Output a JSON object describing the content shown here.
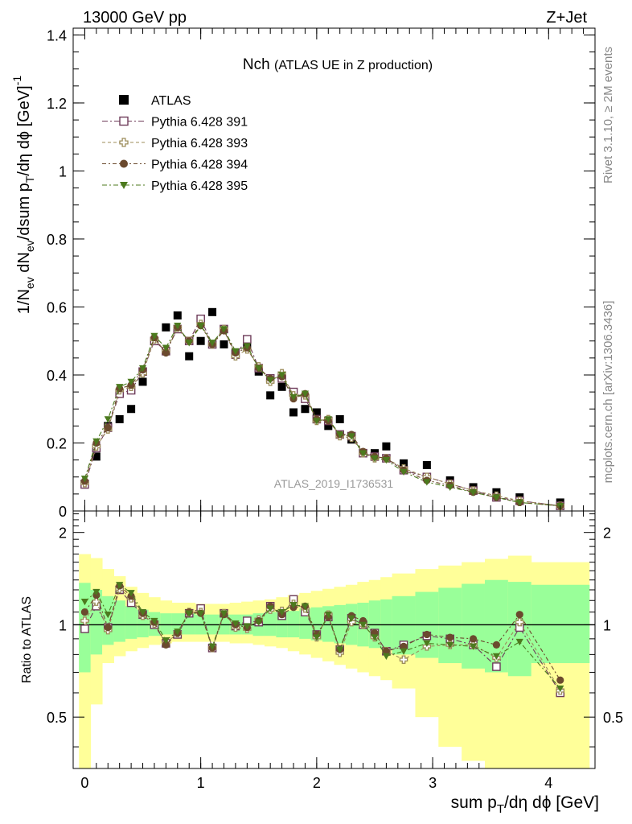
{
  "header": {
    "left": "13000 GeV pp",
    "right": "Z+Jet"
  },
  "side_text": {
    "rivet": "Rivet 3.1.10, ≥ 2M events",
    "mcplots": "mcplots.cern.ch [arXiv:1306.3436]"
  },
  "watermark": "ATLAS_2019_I1736531",
  "chart_data": [
    {
      "type": "scatter",
      "title": "Nch",
      "subtitle": "(ATLAS UE in Z production)",
      "ylabel": "1/N_ev dN_ev/dsum p_T/dη dϕ [GeV]^-1",
      "xlabel": "sum p_T/dη dϕ [GeV]",
      "xlim": [
        -0.1,
        4.4
      ],
      "ylim": [
        0,
        1.42
      ],
      "x_ticks": [
        "0",
        "1",
        "2",
        "3",
        "4"
      ],
      "y_ticks": [
        "0",
        "0.2",
        "0.4",
        "0.6",
        "0.8",
        "1",
        "1.2",
        "1.4"
      ],
      "legend_placement": "top-left",
      "x": [
        0.0,
        0.1,
        0.2,
        0.3,
        0.4,
        0.5,
        0.6,
        0.7,
        0.8,
        0.9,
        1.0,
        1.1,
        1.2,
        1.3,
        1.4,
        1.5,
        1.6,
        1.7,
        1.8,
        1.9,
        2.0,
        2.1,
        2.2,
        2.3,
        2.4,
        2.5,
        2.6,
        2.75,
        2.95,
        3.15,
        3.35,
        3.55,
        3.75,
        4.1
      ],
      "series": [
        {
          "name": "ATLAS",
          "marker": "filled-square",
          "color": "#000000",
          "values": [
            0.08,
            0.16,
            0.25,
            0.27,
            0.3,
            0.38,
            0.5,
            0.54,
            0.575,
            0.455,
            0.5,
            0.585,
            0.49,
            0.465,
            0.49,
            0.41,
            0.34,
            0.365,
            0.29,
            0.3,
            0.29,
            0.25,
            0.27,
            0.21,
            0.17,
            0.17,
            0.19,
            0.14,
            0.135,
            0.09,
            0.07,
            0.055,
            0.04,
            0.025
          ]
        },
        {
          "name": "Pythia 6.428 391",
          "marker": "open-square",
          "color": "#6e3c5a",
          "values": [
            0.078,
            0.185,
            0.245,
            0.345,
            0.355,
            0.41,
            0.5,
            0.47,
            0.535,
            0.5,
            0.565,
            0.49,
            0.535,
            0.46,
            0.505,
            0.42,
            0.39,
            0.39,
            0.35,
            0.33,
            0.27,
            0.265,
            0.225,
            0.22,
            0.17,
            0.16,
            0.155,
            0.12,
            0.1,
            0.08,
            0.06,
            0.04,
            0.03,
            0.015
          ]
        },
        {
          "name": "Pythia 6.428 393",
          "marker": "open-cross",
          "color": "#9c8c5a",
          "values": [
            0.082,
            0.19,
            0.24,
            0.355,
            0.365,
            0.405,
            0.505,
            0.47,
            0.54,
            0.5,
            0.55,
            0.49,
            0.535,
            0.455,
            0.475,
            0.425,
            0.38,
            0.405,
            0.34,
            0.34,
            0.265,
            0.27,
            0.22,
            0.215,
            0.17,
            0.155,
            0.155,
            0.125,
            0.1,
            0.08,
            0.06,
            0.045,
            0.03,
            0.015
          ]
        },
        {
          "name": "Pythia 6.428 394",
          "marker": "filled-circle",
          "color": "#6b4a2e",
          "values": [
            0.088,
            0.2,
            0.245,
            0.36,
            0.37,
            0.415,
            0.51,
            0.465,
            0.54,
            0.5,
            0.545,
            0.49,
            0.53,
            0.465,
            0.48,
            0.42,
            0.39,
            0.395,
            0.33,
            0.345,
            0.27,
            0.265,
            0.225,
            0.225,
            0.175,
            0.16,
            0.155,
            0.12,
            0.09,
            0.075,
            0.055,
            0.04,
            0.025,
            0.015
          ]
        },
        {
          "name": "Pythia 6.428 395",
          "marker": "filled-triangle-down",
          "color": "#4c7a1e",
          "values": [
            0.095,
            0.205,
            0.27,
            0.365,
            0.38,
            0.42,
            0.515,
            0.48,
            0.545,
            0.495,
            0.545,
            0.495,
            0.535,
            0.47,
            0.485,
            0.42,
            0.385,
            0.4,
            0.335,
            0.345,
            0.265,
            0.27,
            0.225,
            0.22,
            0.17,
            0.155,
            0.15,
            0.115,
            0.085,
            0.07,
            0.055,
            0.04,
            0.025,
            0.015
          ]
        }
      ]
    },
    {
      "type": "scatter",
      "ylabel": "Ratio to ATLAS",
      "xlabel": "sum p_T/dη dϕ [GeV]",
      "xlim": [
        -0.1,
        4.4
      ],
      "ylim": [
        0.34,
        2.35
      ],
      "y_ticks": [
        "0.5",
        "1",
        "2"
      ],
      "reference_line": 1,
      "bands": {
        "edges": [
          -0.05,
          0.05,
          0.15,
          0.25,
          0.35,
          0.45,
          0.55,
          0.65,
          0.75,
          0.85,
          0.95,
          1.05,
          1.15,
          1.25,
          1.35,
          1.45,
          1.55,
          1.65,
          1.75,
          1.85,
          1.95,
          2.05,
          2.15,
          2.25,
          2.35,
          2.45,
          2.55,
          2.65,
          2.85,
          3.05,
          3.25,
          3.45,
          3.65,
          3.85,
          4.35
        ],
        "green_color": "#99ff99",
        "yellow_color": "#ffff99",
        "green": [
          [
            0.7,
            1.37
          ],
          [
            0.8,
            1.3
          ],
          [
            0.86,
            1.24
          ],
          [
            0.88,
            1.2
          ],
          [
            0.9,
            1.15
          ],
          [
            0.91,
            1.12
          ],
          [
            0.92,
            1.1
          ],
          [
            0.93,
            1.09
          ],
          [
            0.93,
            1.09
          ],
          [
            0.93,
            1.09
          ],
          [
            0.93,
            1.08
          ],
          [
            0.93,
            1.08
          ],
          [
            0.93,
            1.08
          ],
          [
            0.93,
            1.08
          ],
          [
            0.93,
            1.08
          ],
          [
            0.92,
            1.09
          ],
          [
            0.92,
            1.1
          ],
          [
            0.91,
            1.11
          ],
          [
            0.91,
            1.11
          ],
          [
            0.9,
            1.13
          ],
          [
            0.89,
            1.14
          ],
          [
            0.88,
            1.15
          ],
          [
            0.87,
            1.16
          ],
          [
            0.86,
            1.17
          ],
          [
            0.85,
            1.18
          ],
          [
            0.84,
            1.2
          ],
          [
            0.83,
            1.21
          ],
          [
            0.8,
            1.24
          ],
          [
            0.78,
            1.28
          ],
          [
            0.75,
            1.32
          ],
          [
            0.72,
            1.36
          ],
          [
            0.7,
            1.4
          ],
          [
            0.68,
            1.38
          ],
          [
            0.75,
            1.35
          ]
        ],
        "yellow": [
          [
            0.3,
            1.7
          ],
          [
            0.55,
            1.65
          ],
          [
            0.75,
            1.52
          ],
          [
            0.79,
            1.44
          ],
          [
            0.82,
            1.33
          ],
          [
            0.84,
            1.27
          ],
          [
            0.86,
            1.23
          ],
          [
            0.87,
            1.2
          ],
          [
            0.88,
            1.18
          ],
          [
            0.88,
            1.18
          ],
          [
            0.88,
            1.17
          ],
          [
            0.88,
            1.17
          ],
          [
            0.88,
            1.17
          ],
          [
            0.87,
            1.18
          ],
          [
            0.87,
            1.19
          ],
          [
            0.86,
            1.2
          ],
          [
            0.85,
            1.21
          ],
          [
            0.84,
            1.23
          ],
          [
            0.82,
            1.25
          ],
          [
            0.8,
            1.27
          ],
          [
            0.78,
            1.29
          ],
          [
            0.76,
            1.31
          ],
          [
            0.74,
            1.33
          ],
          [
            0.72,
            1.35
          ],
          [
            0.7,
            1.38
          ],
          [
            0.68,
            1.4
          ],
          [
            0.66,
            1.43
          ],
          [
            0.62,
            1.47
          ],
          [
            0.5,
            1.52
          ],
          [
            0.4,
            1.56
          ],
          [
            0.36,
            1.6
          ],
          [
            0.34,
            1.64
          ],
          [
            0.34,
            1.68
          ],
          [
            0.34,
            1.6
          ]
        ]
      },
      "series": [
        {
          "name": "Pythia 6.428 391",
          "marker": "open-square",
          "color": "#6e3c5a",
          "values": [
            0.97,
            1.15,
            0.98,
            1.3,
            1.18,
            1.08,
            1.0,
            0.87,
            0.93,
            1.09,
            1.13,
            0.84,
            1.09,
            0.99,
            1.03,
            1.02,
            1.15,
            1.07,
            1.21,
            1.1,
            0.93,
            1.06,
            0.83,
            1.05,
            1.0,
            0.94,
            0.82,
            0.86,
            0.92,
            0.9,
            0.86,
            0.73,
            0.98,
            0.6
          ]
        },
        {
          "name": "Pythia 6.428 393",
          "marker": "open-cross",
          "color": "#9c8c5a",
          "values": [
            1.03,
            1.19,
            0.96,
            1.31,
            1.22,
            1.07,
            1.01,
            0.87,
            0.94,
            1.1,
            1.1,
            0.84,
            1.09,
            0.98,
            0.97,
            1.04,
            1.12,
            1.11,
            1.17,
            1.13,
            0.91,
            1.08,
            0.81,
            1.02,
            1.0,
            0.91,
            0.82,
            0.77,
            0.85,
            0.86,
            0.86,
            0.78,
            1.02,
            0.61
          ]
        },
        {
          "name": "Pythia 6.428 394",
          "marker": "filled-circle",
          "color": "#6b4a2e",
          "values": [
            1.1,
            1.25,
            0.98,
            1.34,
            1.24,
            1.09,
            1.02,
            0.86,
            0.94,
            1.1,
            1.09,
            0.84,
            1.08,
            1.0,
            0.98,
            1.03,
            1.15,
            1.08,
            1.14,
            1.15,
            0.93,
            1.06,
            0.83,
            1.07,
            1.03,
            0.94,
            0.82,
            0.85,
            0.93,
            0.91,
            0.9,
            0.86,
            1.08,
            0.66
          ]
        },
        {
          "name": "Pythia 6.428 395",
          "marker": "filled-triangle-down",
          "color": "#4c7a1e",
          "values": [
            1.19,
            1.28,
            1.08,
            1.35,
            1.27,
            1.1,
            1.03,
            0.89,
            0.95,
            1.09,
            1.09,
            0.85,
            1.09,
            1.01,
            0.99,
            1.02,
            1.13,
            1.1,
            1.16,
            1.15,
            0.91,
            1.08,
            0.83,
            1.05,
            1.0,
            0.91,
            0.79,
            0.82,
            0.87,
            0.86,
            0.85,
            0.79,
            0.88,
            0.62
          ]
        }
      ]
    }
  ]
}
